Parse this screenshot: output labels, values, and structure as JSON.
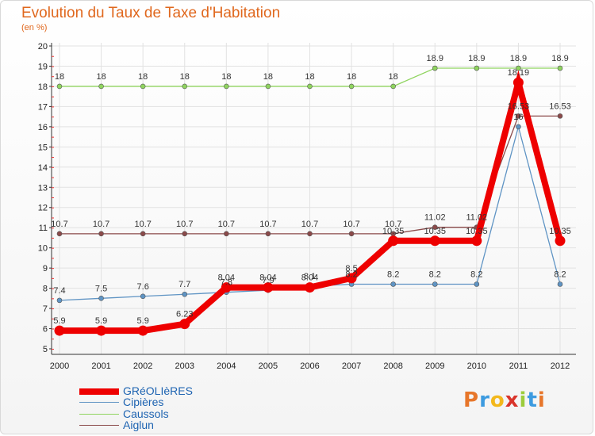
{
  "chart_data": {
    "type": "line",
    "title": "Evolution du Taux de Taxe d'Habitation",
    "subtitle": "(en %)",
    "xlabel": "",
    "ylabel": "",
    "ylim": [
      5,
      20
    ],
    "yticks": [
      5,
      6,
      7,
      8,
      9,
      10,
      11,
      12,
      13,
      14,
      15,
      16,
      17,
      18,
      19,
      20
    ],
    "grid": true,
    "legend_position": "bottom-left",
    "x": [
      "2000",
      "2001",
      "2002",
      "2003",
      "2004",
      "2005",
      "2006",
      "2007",
      "2008",
      "2009",
      "2010",
      "2011",
      "2012"
    ],
    "series": [
      {
        "name": "Caussols",
        "color": "#8fd45f",
        "values": [
          18,
          18,
          18,
          18,
          18,
          18,
          18,
          18,
          18,
          18.9,
          18.9,
          18.9,
          18.9
        ],
        "labels": [
          "18",
          "18",
          "18",
          "18",
          "18",
          "18",
          "18",
          "18",
          "18",
          "18.9",
          "18.9",
          "18.9",
          "18.9"
        ]
      },
      {
        "name": "Aiglun",
        "color": "#8b4a4a",
        "values": [
          10.7,
          10.7,
          10.7,
          10.7,
          10.7,
          10.7,
          10.7,
          10.7,
          10.7,
          11.02,
          11.02,
          16.53,
          16.53
        ],
        "labels": [
          "10.7",
          "10.7",
          "10.7",
          "10.7",
          "10.7",
          "10.7",
          "10.7",
          "10.7",
          "10.7",
          "11.02",
          "11.02",
          "16.53",
          "16.53"
        ]
      },
      {
        "name": "Cipières",
        "color": "#5f94c4",
        "values": [
          7.4,
          7.5,
          7.6,
          7.7,
          7.8,
          7.9,
          8.1,
          8.2,
          8.2,
          8.2,
          8.2,
          16,
          8.2
        ],
        "labels": [
          "7.4",
          "7.5",
          "7.6",
          "7.7",
          "7.8",
          "7.9",
          "8.1",
          "8.2",
          "8.2",
          "8.2",
          "8.2",
          "16",
          "8.2"
        ]
      },
      {
        "name": "GRéOLIèRES",
        "color": "#ee0000",
        "values": [
          5.9,
          5.9,
          5.9,
          6.23,
          8.04,
          8.04,
          8.04,
          8.5,
          10.35,
          10.35,
          10.35,
          18.19,
          10.35
        ],
        "labels": [
          "5.9",
          "5.9",
          "5.9",
          "6.23",
          "8.04",
          "8.04",
          "8.04",
          "8.5",
          "10.35",
          "10.35",
          "10.35",
          "18.19",
          "10.35"
        ]
      }
    ]
  },
  "legend": [
    "GRéOLIèRES",
    "Cipières",
    "Caussols",
    "Aiglun"
  ],
  "logo": {
    "text": "Proxiti",
    "letters": [
      "P",
      "r",
      "o",
      "x",
      "i",
      "t",
      "i"
    ]
  }
}
